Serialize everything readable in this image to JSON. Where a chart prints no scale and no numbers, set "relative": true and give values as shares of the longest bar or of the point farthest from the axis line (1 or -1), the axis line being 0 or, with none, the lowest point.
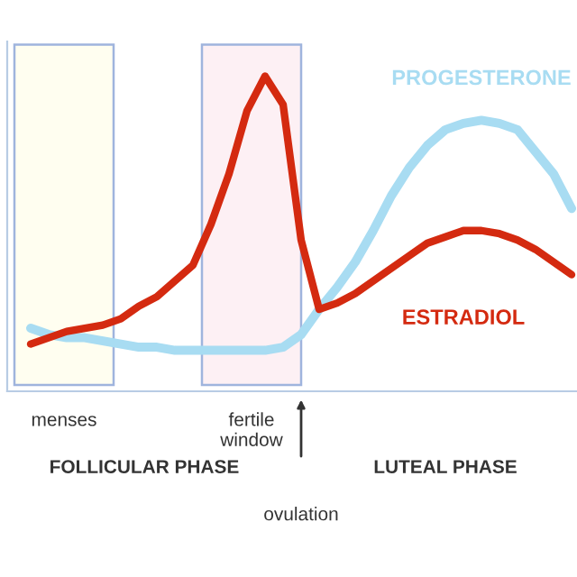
{
  "chart_data": {
    "type": "line",
    "relative": true,
    "tick_labels": false,
    "marker": "none",
    "line_style": "solid",
    "categories": [
      null,
      null,
      null,
      null,
      null,
      null,
      null,
      null,
      null,
      null,
      null,
      null,
      null,
      null,
      null,
      null,
      null,
      null,
      null,
      null,
      null,
      null,
      null,
      null,
      null,
      null,
      null,
      null,
      null,
      null,
      null
    ],
    "series": [
      {
        "name": "PROGESTERONE",
        "color": "#a8dcf2",
        "values": [
          0.2,
          0.18,
          0.17,
          0.17,
          0.16,
          0.15,
          0.14,
          0.14,
          0.13,
          0.13,
          0.13,
          0.13,
          0.13,
          0.13,
          0.14,
          0.18,
          0.26,
          0.33,
          0.41,
          0.51,
          0.62,
          0.71,
          0.78,
          0.83,
          0.85,
          0.86,
          0.85,
          0.83,
          0.76,
          0.69,
          0.58
        ]
      },
      {
        "name": "ESTRADIOL",
        "color": "#d42a10",
        "values": [
          0.15,
          0.17,
          0.19,
          0.2,
          0.21,
          0.23,
          0.27,
          0.3,
          0.35,
          0.4,
          0.53,
          0.69,
          0.89,
          1.0,
          0.91,
          0.48,
          0.26,
          0.28,
          0.31,
          0.35,
          0.39,
          0.43,
          0.47,
          0.49,
          0.51,
          0.51,
          0.5,
          0.48,
          0.45,
          0.41,
          0.37
        ]
      }
    ],
    "annotations": [
      "menses",
      "fertile\nwindow",
      "FOLLICULAR PHASE",
      "LUTEAL PHASE",
      "ovulation"
    ]
  }
}
